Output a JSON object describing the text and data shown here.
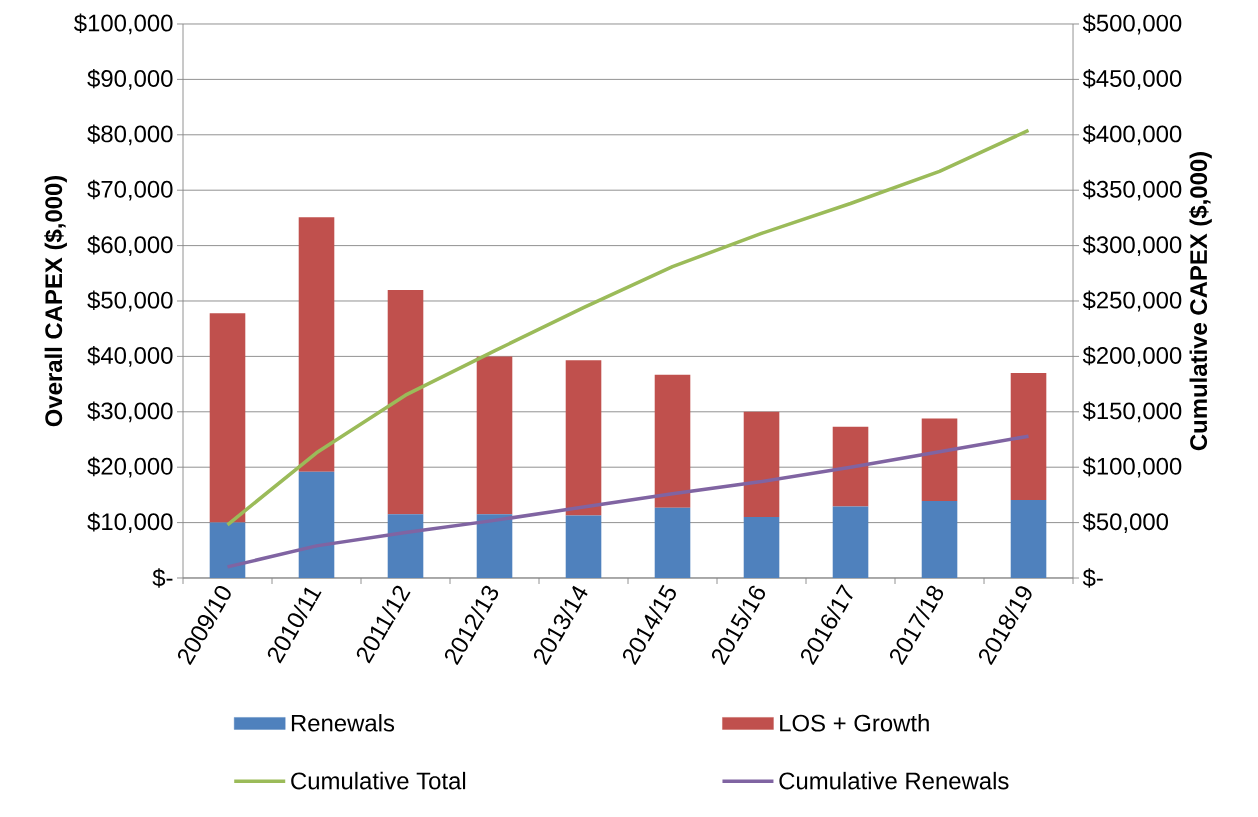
{
  "chart_data": {
    "type": "bar",
    "stacked": true,
    "categories": [
      "2009/10",
      "2010/11",
      "2011/12",
      "2012/13",
      "2013/14",
      "2014/15",
      "2015/16",
      "2016/17",
      "2017/18",
      "2018/19"
    ],
    "series": [
      {
        "name": "Renewals",
        "color": "#4f81bd",
        "values": [
          10000,
          19200,
          11500,
          11500,
          11300,
          12700,
          11000,
          12900,
          13900,
          14100
        ]
      },
      {
        "name": "LOS + Growth",
        "color": "#c0504d",
        "values": [
          37800,
          45900,
          40500,
          28500,
          28000,
          24000,
          19000,
          14400,
          14900,
          22900
        ]
      },
      {
        "name": "Cumulative Total",
        "type": "line",
        "axis": "y2",
        "color": "#9bbb59",
        "values": [
          48000,
          113000,
          165000,
          205000,
          244000,
          281000,
          311000,
          338000,
          367000,
          404000
        ]
      },
      {
        "name": "Cumulative Renewals",
        "type": "line",
        "axis": "y2",
        "color": "#8064a2",
        "values": [
          10000,
          29000,
          41000,
          52000,
          64000,
          76000,
          87000,
          100000,
          114000,
          128000
        ]
      }
    ],
    "ylabel": "Overall CAPEX ($,000)",
    "y2label": "Cumulative CAPEX ($,000)",
    "ylim": [
      0,
      100000
    ],
    "yticks": [
      {
        "value": 0,
        "label": "$-"
      },
      {
        "value": 10000,
        "label": "$10,000"
      },
      {
        "value": 20000,
        "label": "$20,000"
      },
      {
        "value": 30000,
        "label": "$30,000"
      },
      {
        "value": 40000,
        "label": "$40,000"
      },
      {
        "value": 50000,
        "label": "$50,000"
      },
      {
        "value": 60000,
        "label": "$60,000"
      },
      {
        "value": 70000,
        "label": "$70,000"
      },
      {
        "value": 80000,
        "label": "$80,000"
      },
      {
        "value": 90000,
        "label": "$90,000"
      },
      {
        "value": 100000,
        "label": "$100,000"
      }
    ],
    "y2lim": [
      0,
      500000
    ],
    "y2ticks": [
      {
        "value": 0,
        "label": "$-"
      },
      {
        "value": 50000,
        "label": "$50,000"
      },
      {
        "value": 100000,
        "label": "$100,000"
      },
      {
        "value": 150000,
        "label": "$150,000"
      },
      {
        "value": 200000,
        "label": "$200,000"
      },
      {
        "value": 250000,
        "label": "$250,000"
      },
      {
        "value": 300000,
        "label": "$300,000"
      },
      {
        "value": 350000,
        "label": "$350,000"
      },
      {
        "value": 400000,
        "label": "$400,000"
      },
      {
        "value": 450000,
        "label": "$450,000"
      },
      {
        "value": 500000,
        "label": "$500,000"
      }
    ],
    "grid": "y",
    "legend": "bottom"
  }
}
